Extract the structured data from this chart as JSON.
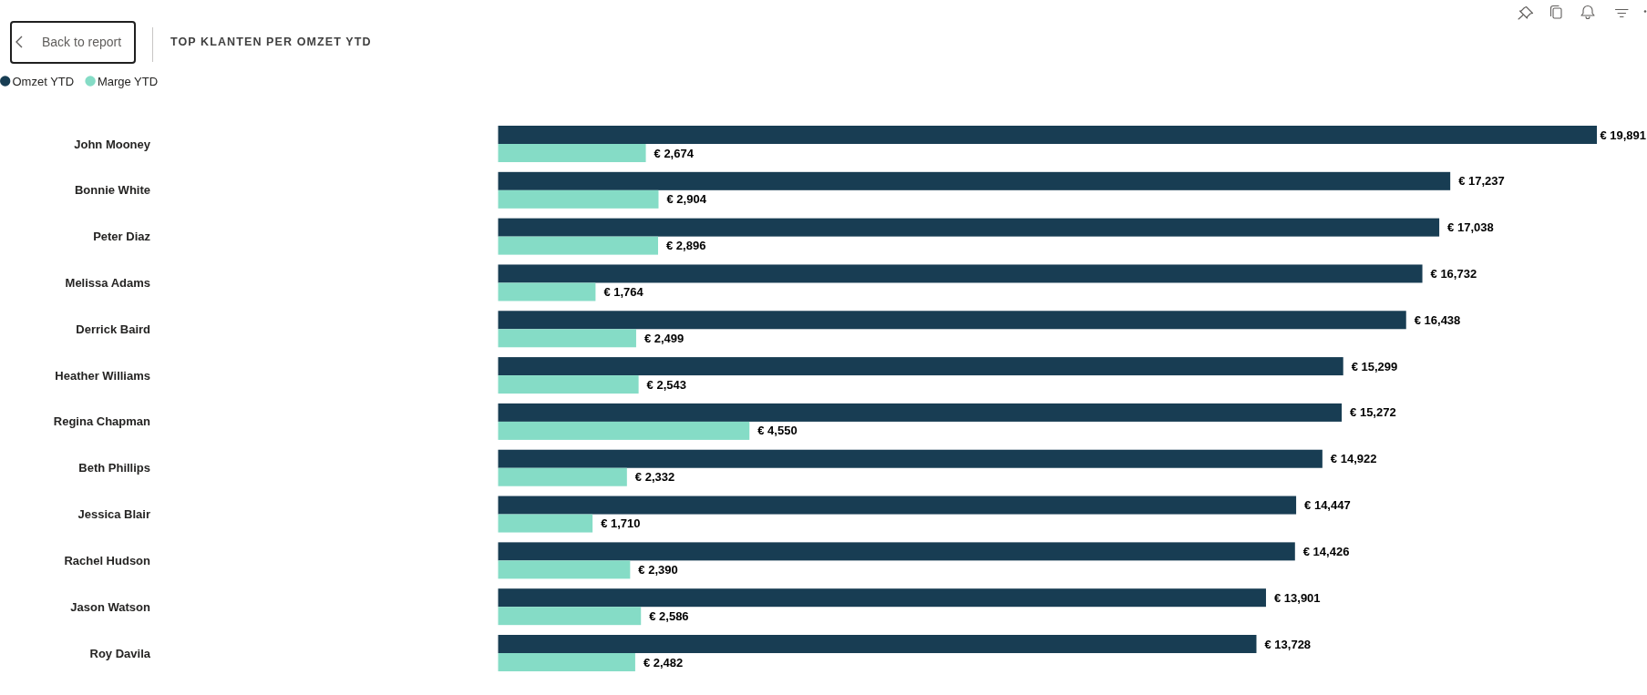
{
  "chart_data": {
    "type": "bar",
    "orientation": "horizontal",
    "title": "TOP KLANTEN PER OMZET YTD",
    "annotations": [
      "Back to report"
    ],
    "legend": "top left",
    "tick_labels": "y",
    "categories": [
      "John Mooney",
      "Bonnie White",
      "Peter Diaz",
      "Melissa Adams",
      "Derrick Baird",
      "Heather Williams",
      "Regina Chapman",
      "Beth Phillips",
      "Jessica Blair",
      "Rachel Hudson",
      "Jason Watson",
      "Roy Davila"
    ],
    "series": [
      {
        "name": "Omzet YTD",
        "color": "#183d53",
        "values": [
          19891,
          17237,
          17038,
          16732,
          16438,
          15299,
          15272,
          14922,
          14447,
          14426,
          13901,
          13728
        ],
        "value_labels": [
          "€ 19,891",
          "€ 17,237",
          "€ 17,038",
          "€ 16,732",
          "€ 16,438",
          "€ 15,299",
          "€ 15,272",
          "€ 14,922",
          "€ 14,447",
          "€ 14,426",
          "€ 13,901",
          "€ 13,728"
        ]
      },
      {
        "name": "Marge YTD",
        "color": "#85dcc6",
        "values": [
          2674,
          2904,
          2896,
          1764,
          2499,
          2543,
          4550,
          2332,
          1710,
          2390,
          2586,
          2482
        ],
        "value_labels": [
          "€ 2,674",
          "€ 2,904",
          "€ 2,896",
          "€ 1,764",
          "€ 2,499",
          "€ 2,543",
          "€ 4,550",
          "€ 2,332",
          "€ 1,710",
          "€ 2,390",
          "€ 2,586",
          "€ 2,482"
        ]
      }
    ]
  }
}
